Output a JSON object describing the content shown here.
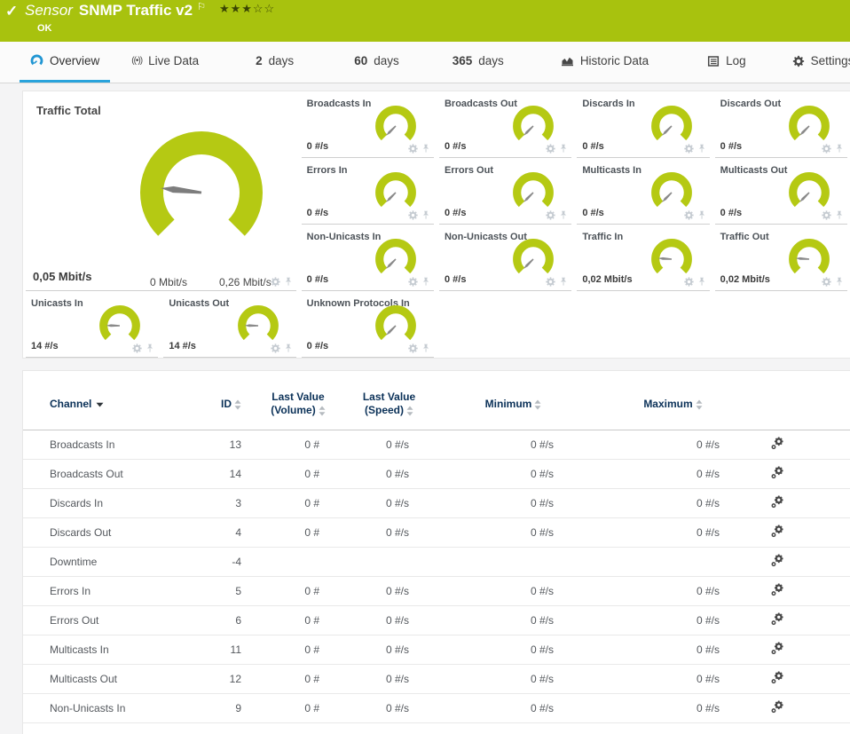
{
  "header": {
    "status_icon": "check-icon",
    "kind_label": "Sensor",
    "title": "SNMP Traffic v2",
    "flag_icon": "priority-flag-icon",
    "rating": {
      "stars_filled": 3,
      "stars_total": 5
    },
    "status": "OK",
    "bg_color": "#a8c20e"
  },
  "tabs": [
    {
      "icon": "gauge-icon",
      "label": "Overview",
      "active": true
    },
    {
      "icon": "live-signal-icon",
      "label": "Live Data",
      "active": false
    },
    {
      "prefix": "2",
      "label": "days",
      "active": false
    },
    {
      "prefix": "60",
      "label": "days",
      "active": false
    },
    {
      "prefix": "365",
      "label": "days",
      "active": false
    },
    {
      "icon": "area-chart-icon",
      "label": "Historic Data",
      "active": false
    },
    {
      "icon": "log-document-icon",
      "label": "Log",
      "active": false
    },
    {
      "icon": "gear-icon",
      "label": "Settings",
      "active": false
    }
  ],
  "gauges": {
    "arc_color": "#b5c913",
    "needle_color": "#7d7d7d",
    "large": {
      "title": "Traffic Total",
      "value": "0,05 Mbit/s",
      "min_label": "0 Mbit/s",
      "max_label": "0,26 Mbit/s",
      "pct": 0.19,
      "icons": [
        "gear-icon",
        "pin-icon"
      ]
    },
    "small": [
      {
        "title": "Broadcasts In",
        "value": "0 #/s",
        "pct": 0
      },
      {
        "title": "Broadcasts Out",
        "value": "0 #/s",
        "pct": 0
      },
      {
        "title": "Discards In",
        "value": "0 #/s",
        "pct": 0
      },
      {
        "title": "Discards Out",
        "value": "0 #/s",
        "pct": 0
      },
      {
        "title": "Errors In",
        "value": "0 #/s",
        "pct": 0
      },
      {
        "title": "Errors Out",
        "value": "0 #/s",
        "pct": 0
      },
      {
        "title": "Multicasts In",
        "value": "0 #/s",
        "pct": 0
      },
      {
        "title": "Multicasts Out",
        "value": "0 #/s",
        "pct": 0
      },
      {
        "title": "Non-Unicasts In",
        "value": "0 #/s",
        "pct": 0
      },
      {
        "title": "Non-Unicasts Out",
        "value": "0 #/s",
        "pct": 0
      },
      {
        "title": "Traffic In",
        "value": "0,02 Mbit/s",
        "pct": 0.18
      },
      {
        "title": "Traffic Out",
        "value": "0,02 Mbit/s",
        "pct": 0.18
      },
      {
        "title": "Unicasts In",
        "value": "14 #/s",
        "pct": 0.17
      },
      {
        "title": "Unicasts Out",
        "value": "14 #/s",
        "pct": 0.17
      },
      {
        "title": "Unknown Protocols In",
        "value": "0 #/s",
        "pct": 0
      }
    ]
  },
  "table": {
    "columns": {
      "channel": "Channel",
      "id": "ID",
      "last_value_volume_line1": "Last Value",
      "last_value_volume_line2": "(Volume)",
      "last_value_speed_line1": "Last Value",
      "last_value_speed_line2": "(Speed)",
      "minimum": "Minimum",
      "maximum": "Maximum"
    },
    "row_action_icon": "channel-settings-gear-icon",
    "rows": [
      {
        "channel": "Broadcasts In",
        "id": "13",
        "volume": "0 #",
        "speed": "0 #/s",
        "min": "0 #/s",
        "max": "0 #/s"
      },
      {
        "channel": "Broadcasts Out",
        "id": "14",
        "volume": "0 #",
        "speed": "0 #/s",
        "min": "0 #/s",
        "max": "0 #/s"
      },
      {
        "channel": "Discards In",
        "id": "3",
        "volume": "0 #",
        "speed": "0 #/s",
        "min": "0 #/s",
        "max": "0 #/s"
      },
      {
        "channel": "Discards Out",
        "id": "4",
        "volume": "0 #",
        "speed": "0 #/s",
        "min": "0 #/s",
        "max": "0 #/s"
      },
      {
        "channel": "Downtime",
        "id": "-4",
        "volume": "",
        "speed": "",
        "min": "",
        "max": ""
      },
      {
        "channel": "Errors In",
        "id": "5",
        "volume": "0 #",
        "speed": "0 #/s",
        "min": "0 #/s",
        "max": "0 #/s"
      },
      {
        "channel": "Errors Out",
        "id": "6",
        "volume": "0 #",
        "speed": "0 #/s",
        "min": "0 #/s",
        "max": "0 #/s"
      },
      {
        "channel": "Multicasts In",
        "id": "11",
        "volume": "0 #",
        "speed": "0 #/s",
        "min": "0 #/s",
        "max": "0 #/s"
      },
      {
        "channel": "Multicasts Out",
        "id": "12",
        "volume": "0 #",
        "speed": "0 #/s",
        "min": "0 #/s",
        "max": "0 #/s"
      },
      {
        "channel": "Non-Unicasts In",
        "id": "9",
        "volume": "0 #",
        "speed": "0 #/s",
        "min": "0 #/s",
        "max": "0 #/s"
      }
    ]
  }
}
